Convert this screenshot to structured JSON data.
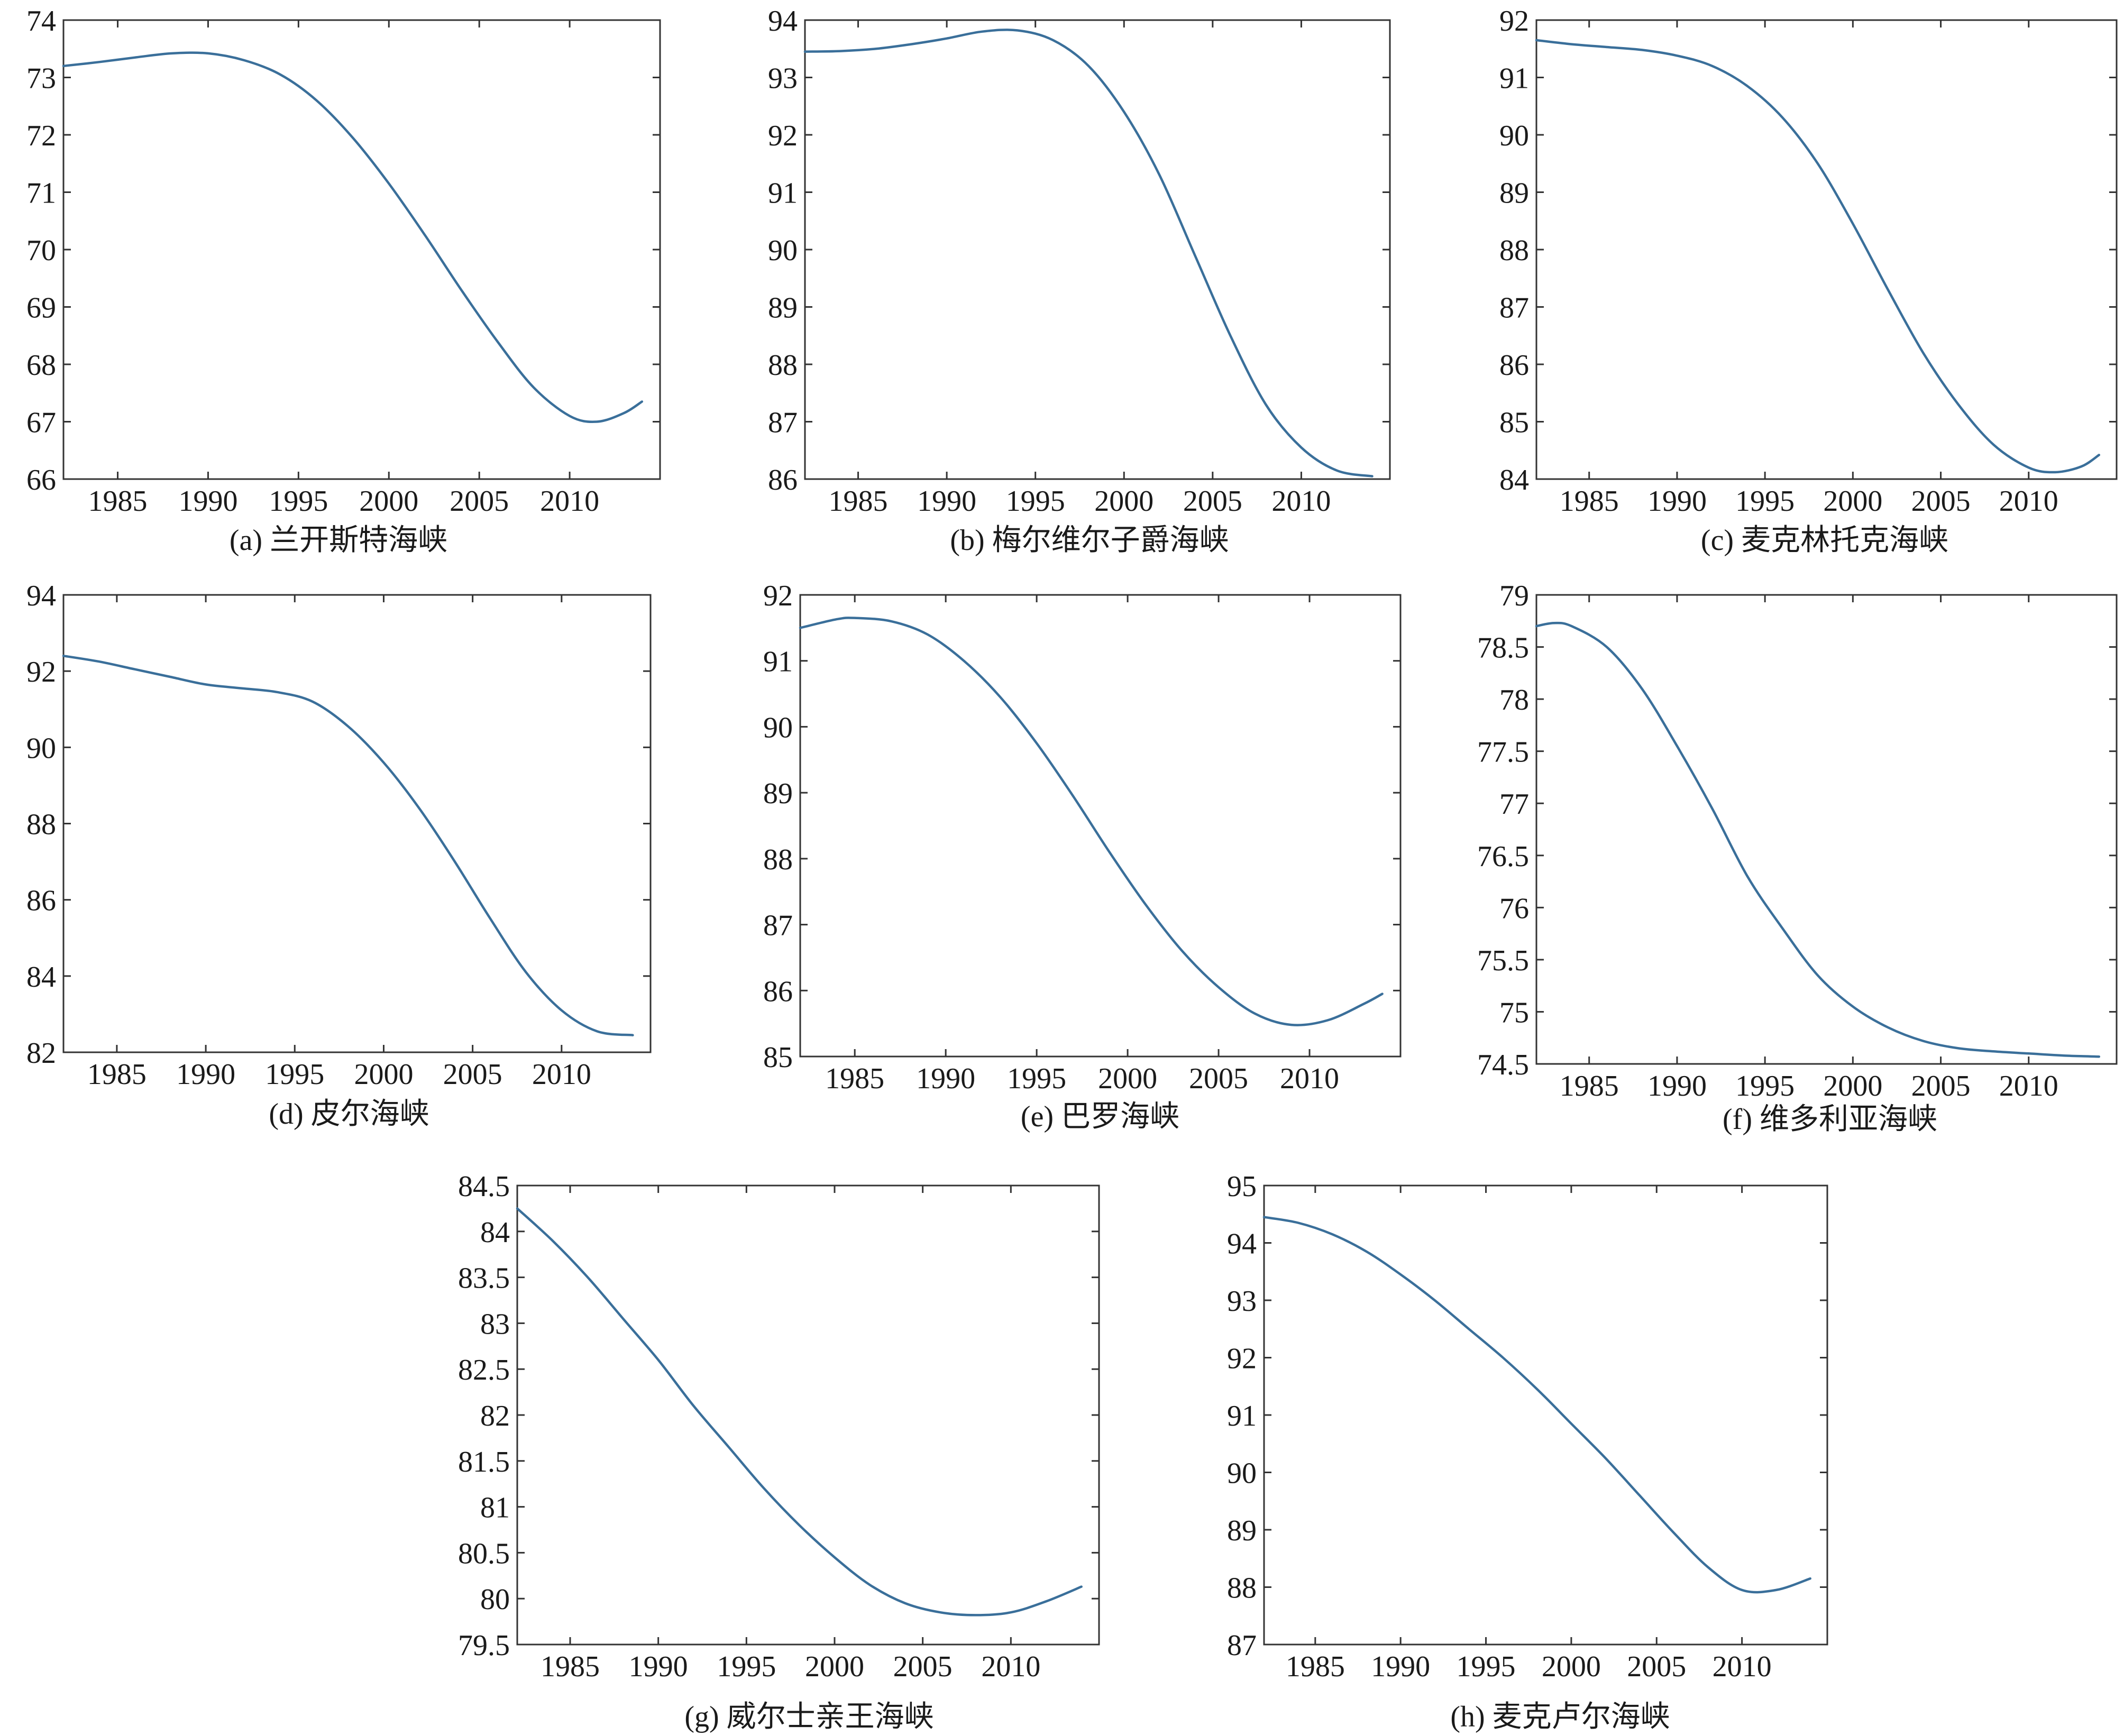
{
  "figure": {
    "line_color": "#3a6f9a",
    "axis_color": "#333333",
    "text_color": "#1a1a1a",
    "background": "#ffffff"
  },
  "chart_data": [
    {
      "type": "line",
      "caption": "(a) 兰开斯特海峡",
      "xlim": [
        1982,
        2015
      ],
      "ylim": [
        66,
        74
      ],
      "xticks": [
        1985,
        1990,
        1995,
        2000,
        2005,
        2010
      ],
      "yticks": [
        66,
        67,
        68,
        69,
        70,
        71,
        72,
        73,
        74
      ],
      "grid": false,
      "series": [
        {
          "x": [
            1982,
            1984,
            1986,
            1988,
            1990,
            1992,
            1994,
            1996,
            1998,
            2000,
            2002,
            2004,
            2006,
            2008,
            2010,
            2011.5,
            2013,
            2014
          ],
          "y": [
            73.2,
            73.27,
            73.35,
            73.42,
            73.42,
            73.3,
            73.05,
            72.6,
            71.95,
            71.15,
            70.25,
            69.3,
            68.4,
            67.6,
            67.1,
            67.0,
            67.15,
            67.35
          ]
        }
      ]
    },
    {
      "type": "line",
      "caption": "(b) 梅尔维尔子爵海峡",
      "xlim": [
        1982,
        2015
      ],
      "ylim": [
        86,
        94
      ],
      "xticks": [
        1985,
        1990,
        1995,
        2000,
        2005,
        2010
      ],
      "yticks": [
        86,
        87,
        88,
        89,
        90,
        91,
        92,
        93,
        94
      ],
      "grid": false,
      "series": [
        {
          "x": [
            1982,
            1984,
            1986,
            1988,
            1990,
            1992,
            1994,
            1996,
            1998,
            2000,
            2002,
            2004,
            2006,
            2008,
            2010,
            2012,
            2014
          ],
          "y": [
            93.45,
            93.46,
            93.5,
            93.58,
            93.68,
            93.8,
            93.82,
            93.65,
            93.2,
            92.4,
            91.3,
            89.9,
            88.5,
            87.3,
            86.55,
            86.15,
            86.05
          ]
        }
      ]
    },
    {
      "type": "line",
      "caption": "(c) 麦克林托克海峡",
      "xlim": [
        1982,
        2015
      ],
      "ylim": [
        84,
        92
      ],
      "xticks": [
        1985,
        1990,
        1995,
        2000,
        2005,
        2010
      ],
      "yticks": [
        84,
        85,
        86,
        87,
        88,
        89,
        90,
        91,
        92
      ],
      "grid": false,
      "series": [
        {
          "x": [
            1982,
            1984,
            1986,
            1988,
            1990,
            1992,
            1994,
            1996,
            1998,
            2000,
            2002,
            2004,
            2006,
            2008,
            2010,
            2011.5,
            2013,
            2014
          ],
          "y": [
            91.65,
            91.58,
            91.53,
            91.48,
            91.38,
            91.2,
            90.85,
            90.3,
            89.5,
            88.45,
            87.3,
            86.2,
            85.3,
            84.6,
            84.2,
            84.12,
            84.22,
            84.42
          ]
        }
      ]
    },
    {
      "type": "line",
      "caption": "(d) 皮尔海峡",
      "xlim": [
        1982,
        2015
      ],
      "ylim": [
        82,
        94
      ],
      "xticks": [
        1985,
        1990,
        1995,
        2000,
        2005,
        2010
      ],
      "yticks": [
        82,
        84,
        86,
        88,
        90,
        92,
        94
      ],
      "grid": false,
      "series": [
        {
          "x": [
            1982,
            1984,
            1986,
            1988,
            1990,
            1992,
            1994,
            1996,
            1998,
            2000,
            2002,
            2004,
            2006,
            2008,
            2010,
            2012,
            2014
          ],
          "y": [
            92.4,
            92.25,
            92.05,
            91.85,
            91.65,
            91.55,
            91.45,
            91.2,
            90.55,
            89.6,
            88.4,
            87.0,
            85.5,
            84.1,
            83.1,
            82.55,
            82.45
          ]
        }
      ]
    },
    {
      "type": "line",
      "caption": "(e) 巴罗海峡",
      "xlim": [
        1982,
        2015
      ],
      "ylim": [
        85,
        92
      ],
      "xticks": [
        1985,
        1990,
        1995,
        2000,
        2005,
        2010
      ],
      "yticks": [
        85,
        86,
        87,
        88,
        89,
        90,
        91,
        92
      ],
      "grid": false,
      "series": [
        {
          "x": [
            1982,
            1984,
            1985,
            1987,
            1989,
            1991,
            1993,
            1995,
            1997,
            1999,
            2001,
            2003,
            2005,
            2007,
            2009,
            2011,
            2013,
            2014
          ],
          "y": [
            91.5,
            91.63,
            91.65,
            91.6,
            91.4,
            91.0,
            90.45,
            89.75,
            88.95,
            88.1,
            87.3,
            86.6,
            86.05,
            85.65,
            85.48,
            85.55,
            85.8,
            85.95
          ]
        }
      ]
    },
    {
      "type": "line",
      "caption": "(f) 维多利亚海峡",
      "xlim": [
        1982,
        2015
      ],
      "ylim": [
        74.5,
        79
      ],
      "xticks": [
        1985,
        1990,
        1995,
        2000,
        2005,
        2010
      ],
      "yticks": [
        74.5,
        75,
        75.5,
        76,
        76.5,
        77,
        77.5,
        78,
        78.5,
        79
      ],
      "grid": false,
      "series": [
        {
          "x": [
            1982,
            1983,
            1984,
            1986,
            1988,
            1990,
            1992,
            1994,
            1996,
            1998,
            2000,
            2002,
            2004,
            2006,
            2008,
            2010,
            2012,
            2014
          ],
          "y": [
            78.7,
            78.73,
            78.7,
            78.5,
            78.1,
            77.55,
            76.95,
            76.3,
            75.8,
            75.35,
            75.05,
            74.85,
            74.72,
            74.65,
            74.62,
            74.6,
            74.58,
            74.57
          ]
        }
      ]
    },
    {
      "type": "line",
      "caption": "(g) 威尔士亲王海峡",
      "xlim": [
        1982,
        2015
      ],
      "ylim": [
        79.5,
        84.5
      ],
      "xticks": [
        1985,
        1990,
        1995,
        2000,
        2005,
        2010
      ],
      "yticks": [
        79.5,
        80,
        80.5,
        81,
        81.5,
        82,
        82.5,
        83,
        83.5,
        84,
        84.5
      ],
      "grid": false,
      "series": [
        {
          "x": [
            1982,
            1984,
            1986,
            1988,
            1990,
            1992,
            1994,
            1996,
            1998,
            2000,
            2002,
            2004,
            2006,
            2008,
            2010,
            2012,
            2014
          ],
          "y": [
            84.25,
            83.9,
            83.5,
            83.05,
            82.6,
            82.1,
            81.65,
            81.2,
            80.8,
            80.45,
            80.15,
            79.95,
            79.85,
            79.82,
            79.85,
            79.97,
            80.13
          ]
        }
      ]
    },
    {
      "type": "line",
      "caption": "(h) 麦克卢尔海峡",
      "xlim": [
        1982,
        2015
      ],
      "ylim": [
        87,
        95
      ],
      "xticks": [
        1985,
        1990,
        1995,
        2000,
        2005,
        2010
      ],
      "yticks": [
        87,
        88,
        89,
        90,
        91,
        92,
        93,
        94,
        95
      ],
      "grid": false,
      "series": [
        {
          "x": [
            1982,
            1984,
            1986,
            1988,
            1990,
            1992,
            1994,
            1996,
            1998,
            2000,
            2002,
            2004,
            2006,
            2008,
            2010,
            2012,
            2014
          ],
          "y": [
            94.45,
            94.35,
            94.15,
            93.85,
            93.45,
            93.0,
            92.5,
            92.0,
            91.45,
            90.85,
            90.25,
            89.6,
            88.95,
            88.35,
            87.95,
            87.95,
            88.15
          ]
        }
      ]
    }
  ]
}
